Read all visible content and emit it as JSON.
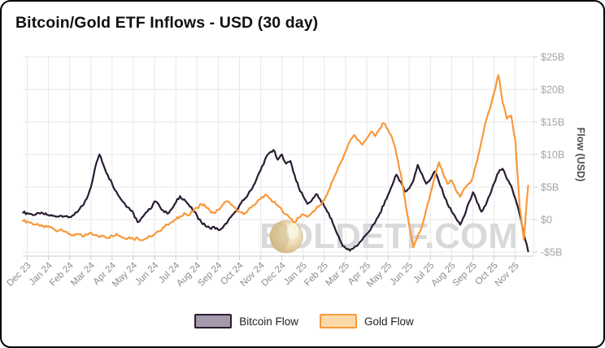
{
  "title": "Bitcoin/Gold ETF Inflows - USD (30 day)",
  "watermark": {
    "text": "BOLDETF.COM",
    "color": "#d9d9d9",
    "coin_colors": [
      "#f8f1dc",
      "#eee0bb",
      "#d9c293",
      "#c6ab74"
    ]
  },
  "legend": [
    {
      "label": "Bitcoin Flow",
      "fill": "#a59aab",
      "border": "#2a1c32"
    },
    {
      "label": "Gold Flow",
      "fill": "#fcd9a8",
      "border": "#f8993c"
    }
  ],
  "colors": {
    "grid": "#e7e7e7",
    "axis_line": "#d6d6d6",
    "tick_mark": "#cccccc",
    "x_label": "#8c8c8c",
    "y_label": "#a4a4a4",
    "axis_title": "#4d4d4d",
    "title_text": "#101010"
  },
  "chart_data": {
    "type": "line",
    "title": "Bitcoin/Gold ETF Inflows - USD (30 day)",
    "xlabel": "",
    "ylabel": "Flow (USD)",
    "grid": true,
    "legend_position": "bottom",
    "ylim": [
      -5.6,
      25
    ],
    "y_ticks": [
      "$25B",
      "$20B",
      "$15B",
      "$10B",
      "$5B",
      "$0",
      "-$5B"
    ],
    "y_tick_values": [
      25,
      20,
      15,
      10,
      5,
      0,
      -5
    ],
    "x_categories": [
      "Dec 23",
      "Jan 24",
      "Feb 24",
      "Mar 24",
      "Apr 24",
      "May 24",
      "Jun 24",
      "Jul 24",
      "Aug 24",
      "Sep 24",
      "Oct 24",
      "Nov 24",
      "Dec 24",
      "Jan 25",
      "Feb 25",
      "Mar 25",
      "Apr 25",
      "May 25",
      "Jun 25",
      "Jul 25",
      "Aug 25",
      "Sep 25",
      "Oct 25",
      "Nov 25"
    ],
    "x_start_month": -0.2,
    "x_step_month": 0.2,
    "unit": "billions USD, 30-day flow",
    "series": [
      {
        "name": "Bitcoin Flow",
        "color": "#2a1c32",
        "values": [
          1.05,
          1.0,
          0.85,
          0.75,
          0.9,
          0.8,
          0.7,
          0.55,
          0.45,
          0.6,
          0.5,
          0.4,
          0.7,
          1.3,
          2.1,
          3.2,
          5.0,
          8.0,
          10.0,
          8.3,
          6.8,
          5.5,
          4.3,
          3.2,
          2.4,
          1.8,
          1.0,
          -0.4,
          0.3,
          1.1,
          1.6,
          2.8,
          2.3,
          1.4,
          0.9,
          1.6,
          2.6,
          3.6,
          3.1,
          2.3,
          1.4,
          0.6,
          -0.4,
          -1.0,
          -1.3,
          -1.1,
          -1.6,
          -1.3,
          -0.6,
          0.4,
          1.2,
          2.2,
          3.0,
          3.8,
          4.8,
          6.2,
          7.6,
          9.2,
          10.2,
          10.7,
          9.2,
          10.0,
          8.6,
          9.0,
          6.8,
          4.8,
          3.6,
          2.4,
          2.9,
          3.9,
          3.1,
          2.0,
          1.0,
          -0.6,
          -2.2,
          -3.6,
          -4.4,
          -4.8,
          -4.3,
          -3.8,
          -3.0,
          -2.2,
          -1.4,
          -0.4,
          0.9,
          2.2,
          3.8,
          5.3,
          6.9,
          5.8,
          4.3,
          4.8,
          6.0,
          8.4,
          7.0,
          5.5,
          6.2,
          7.4,
          5.8,
          4.0,
          2.4,
          1.2,
          0.2,
          -0.8,
          0.6,
          2.6,
          4.2,
          2.6,
          1.2,
          2.2,
          3.8,
          5.6,
          7.2,
          7.8,
          6.2,
          5.2,
          3.2,
          0.8,
          -2.2,
          -4.9
        ]
      },
      {
        "name": "Gold Flow",
        "color": "#f8993c",
        "values": [
          -0.2,
          -0.3,
          -0.5,
          -0.8,
          -1.0,
          -1.2,
          -1.0,
          -1.4,
          -1.8,
          -1.5,
          -1.9,
          -2.2,
          -2.5,
          -2.2,
          -2.6,
          -2.3,
          -2.0,
          -2.4,
          -2.7,
          -2.5,
          -2.8,
          -2.5,
          -2.2,
          -2.6,
          -2.9,
          -2.7,
          -3.0,
          -2.8,
          -3.2,
          -2.9,
          -2.6,
          -2.3,
          -1.8,
          -1.2,
          -0.8,
          -0.4,
          0.0,
          0.5,
          1.0,
          0.6,
          1.2,
          1.8,
          2.4,
          2.0,
          1.4,
          1.0,
          1.5,
          2.2,
          2.8,
          2.3,
          1.8,
          1.2,
          0.8,
          1.4,
          2.0,
          2.6,
          3.2,
          3.8,
          3.3,
          2.7,
          2.2,
          1.5,
          0.8,
          0.2,
          -0.4,
          0.3,
          0.8,
          0.4,
          1.0,
          1.6,
          2.2,
          3.0,
          4.5,
          6.0,
          7.5,
          9.0,
          10.5,
          12.0,
          13.0,
          12.2,
          11.5,
          12.5,
          13.5,
          12.8,
          14.0,
          14.8,
          13.8,
          12.5,
          10.0,
          7.0,
          3.0,
          -1.0,
          -4.3,
          -2.5,
          -1.0,
          1.5,
          4.0,
          6.5,
          8.8,
          7.0,
          5.5,
          6.0,
          4.5,
          3.5,
          4.8,
          5.5,
          6.5,
          9.0,
          12.0,
          15.0,
          17.0,
          19.5,
          22.2,
          18.0,
          15.5,
          16.0,
          12.0,
          2.0,
          -3.1,
          5.2
        ]
      }
    ]
  }
}
